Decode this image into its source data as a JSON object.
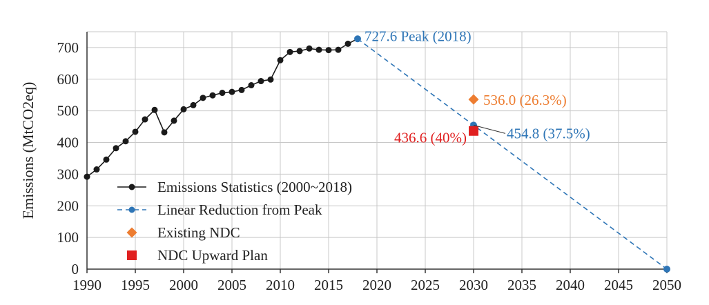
{
  "chart_data": {
    "type": "line",
    "title": "",
    "xlabel": "",
    "ylabel": "Emissions (MtCO2eq)",
    "xlim": [
      1990,
      2050
    ],
    "ylim": [
      0,
      750
    ],
    "xticks": [
      1990,
      1995,
      2000,
      2005,
      2010,
      2015,
      2020,
      2025,
      2030,
      2035,
      2040,
      2045,
      2050
    ],
    "yticks": [
      0,
      100,
      200,
      300,
      400,
      500,
      600,
      700
    ],
    "grid": true,
    "legend_position": "bottom-left",
    "series": [
      {
        "name": "Emissions Statistics (2000~2018)",
        "style": "solid-line-markers",
        "color": "#1a1a1a",
        "x": [
          1990,
          1991,
          1992,
          1993,
          1994,
          1995,
          1996,
          1997,
          1998,
          1999,
          2000,
          2001,
          2002,
          2003,
          2004,
          2005,
          2006,
          2007,
          2008,
          2009,
          2010,
          2011,
          2012,
          2013,
          2014,
          2015,
          2016,
          2017
        ],
        "y": [
          292,
          315,
          346,
          382,
          404,
          434,
          473,
          503,
          432,
          469,
          505,
          518,
          541,
          549,
          557,
          560,
          566,
          581,
          594,
          599,
          660,
          686,
          689,
          697,
          693,
          692,
          693,
          712
        ]
      },
      {
        "name": "Linear Reduction from Peak",
        "style": "dashed-line-markers",
        "color": "#2e75b6",
        "x": [
          2018,
          2030,
          2050
        ],
        "y": [
          727.6,
          454.8,
          0
        ]
      },
      {
        "name": "Existing NDC",
        "style": "diamond-marker",
        "color": "#ed7d31",
        "x": [
          2030
        ],
        "y": [
          536.0
        ]
      },
      {
        "name": "NDC Upward Plan",
        "style": "square-marker",
        "color": "#e02020",
        "x": [
          2030
        ],
        "y": [
          436.6
        ]
      }
    ],
    "annotations": [
      {
        "text": "727.6 Peak (2018)",
        "color": "#2e75b6"
      },
      {
        "text": "536.0 (26.3%)",
        "color": "#ed7d31"
      },
      {
        "text": "436.6 (40%)",
        "color": "#e02020"
      },
      {
        "text": "454.8 (37.5%)",
        "color": "#2e75b6"
      }
    ]
  }
}
